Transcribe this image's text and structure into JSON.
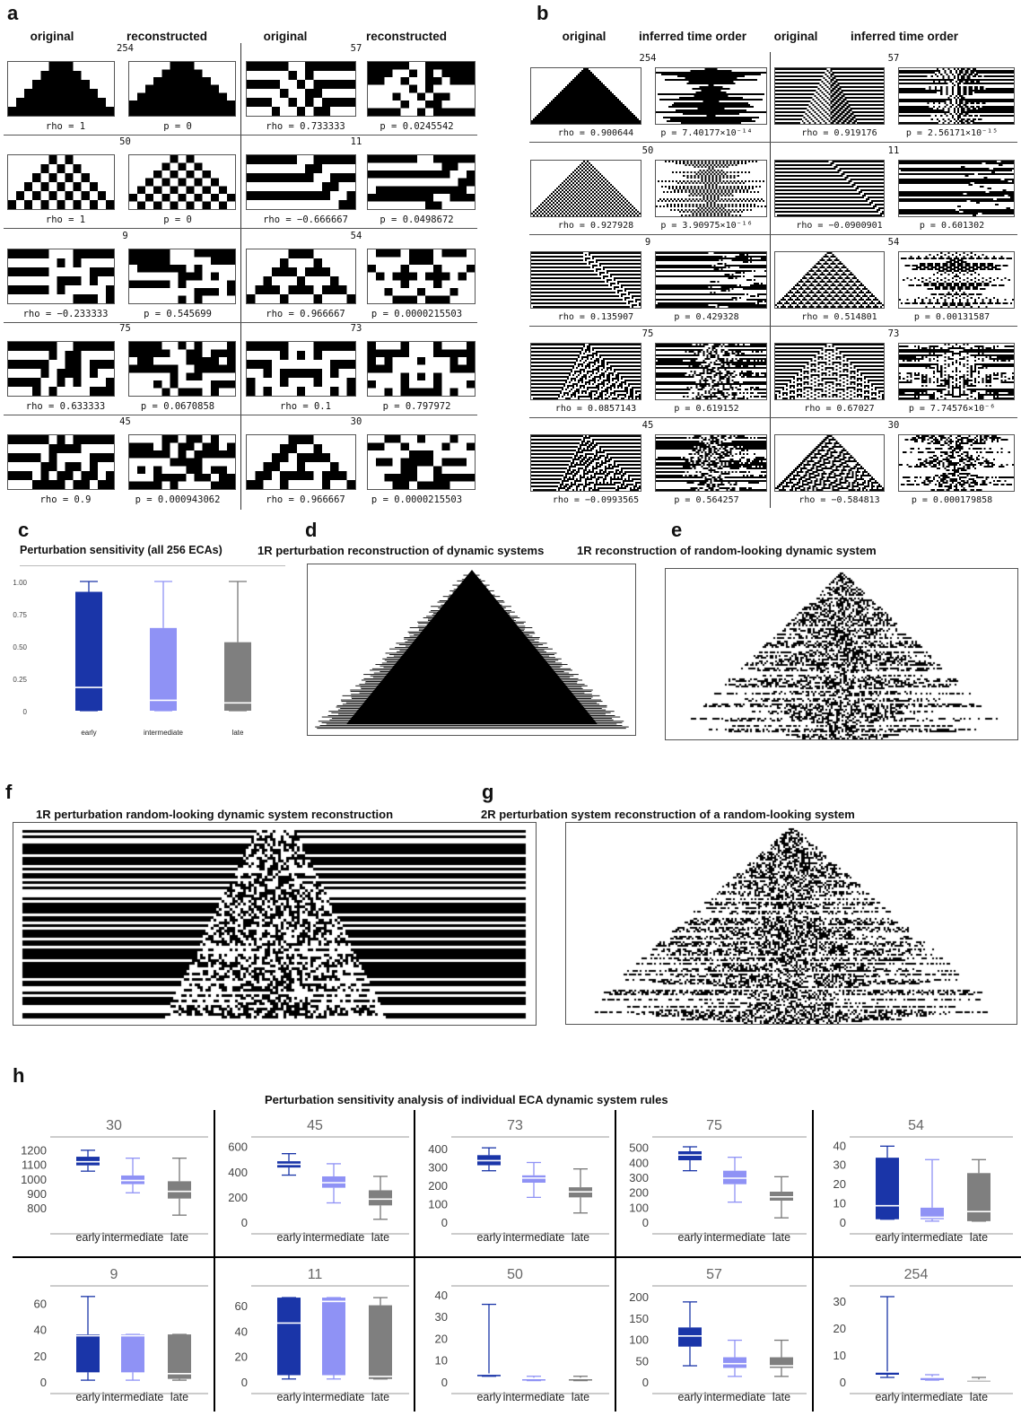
{
  "panel_a": {
    "label": "a",
    "headers": [
      "original",
      "reconstructed",
      "original",
      "reconstructed"
    ],
    "rows": [
      {
        "left": {
          "rule": "254",
          "rho": "rho = 1",
          "p": "p = 0"
        },
        "right": {
          "rule": "57",
          "rho": "rho = 0.733333",
          "p": "p = 0.0245542"
        }
      },
      {
        "left": {
          "rule": "50",
          "rho": "rho = 1",
          "p": "p = 0"
        },
        "right": {
          "rule": "11",
          "rho": "rho = −0.666667",
          "p": "p = 0.0498672"
        }
      },
      {
        "left": {
          "rule": "9",
          "rho": "rho = −0.233333",
          "p": "p = 0.545699"
        },
        "right": {
          "rule": "54",
          "rho": "rho = 0.966667",
          "p": "p = 0.0000215503"
        }
      },
      {
        "left": {
          "rule": "75",
          "rho": "rho = 0.633333",
          "p": "p = 0.0670858"
        },
        "right": {
          "rule": "73",
          "rho": "rho = 0.1",
          "p": "p = 0.797972"
        }
      },
      {
        "left": {
          "rule": "45",
          "rho": "rho = 0.9",
          "p": "p = 0.000943062"
        },
        "right": {
          "rule": "30",
          "rho": "rho = 0.966667",
          "p": "p = 0.0000215503"
        }
      }
    ]
  },
  "panel_b": {
    "label": "b",
    "headers": [
      "original",
      "inferred time order",
      "original",
      "inferred time order"
    ],
    "rows": [
      {
        "left": {
          "rule": "254",
          "rho": "rho = 0.900644",
          "p": "p = 7.40177×10⁻¹⁴"
        },
        "right": {
          "rule": "57",
          "rho": "rho = 0.919176",
          "p": "p = 2.56171×10⁻¹⁵"
        }
      },
      {
        "left": {
          "rule": "50",
          "rho": "rho = 0.927928",
          "p": "p = 3.90975×10⁻¹⁶"
        },
        "right": {
          "rule": "11",
          "rho": "rho = −0.0900901",
          "p": "p = 0.601302"
        }
      },
      {
        "left": {
          "rule": "9",
          "rho": "rho = 0.135907",
          "p": "p = 0.429328"
        },
        "right": {
          "rule": "54",
          "rho": "rho = 0.514801",
          "p": "p = 0.00131587"
        }
      },
      {
        "left": {
          "rule": "75",
          "rho": "rho = 0.0857143",
          "p": "p = 0.619152"
        },
        "right": {
          "rule": "73",
          "rho": "rho = 0.67027",
          "p": "p = 7.74576×10⁻⁶"
        }
      },
      {
        "left": {
          "rule": "45",
          "rho": "rho = −0.0993565",
          "p": "p = 0.564257"
        },
        "right": {
          "rule": "30",
          "rho": "rho = −0.584813",
          "p": "p = 0.000179858"
        }
      }
    ]
  },
  "panel_c": {
    "label": "c",
    "title": "Perturbation sensitivity (all 256 ECAs)"
  },
  "panel_d": {
    "label": "d",
    "title": "1R perturbation reconstruction of dynamic systems"
  },
  "panel_e": {
    "label": "e",
    "title": "1R reconstruction of random-looking dynamic system"
  },
  "panel_f": {
    "label": "f",
    "title": "1R perturbation random-looking dynamic system reconstruction"
  },
  "panel_g": {
    "label": "g",
    "title": "2R perturbation system reconstruction of a random-looking system"
  },
  "panel_h": {
    "label": "h",
    "title": "Perturbation sensitivity analysis of individual ECA dynamic system rules"
  },
  "colors": {
    "early": "#1a35a8",
    "intermediate": "#8f92f5",
    "late": "#7f7f7f"
  },
  "chart_data": [
    {
      "type": "box",
      "panel": "c",
      "title": "Perturbation sensitivity (all 256 ECAs)",
      "categories": [
        "early",
        "intermediate",
        "late"
      ],
      "yticks": [
        "0",
        "0.25",
        "0.50",
        "0.75",
        "1.00"
      ],
      "ylim": [
        0,
        1
      ],
      "boxes": [
        {
          "min": 0,
          "q1": 0,
          "median": 0.18,
          "q3": 0.92,
          "max": 1.0
        },
        {
          "min": 0,
          "q1": 0,
          "median": 0.08,
          "q3": 0.64,
          "max": 1.0
        },
        {
          "min": 0,
          "q1": 0,
          "median": 0.06,
          "q3": 0.53,
          "max": 1.0
        }
      ]
    },
    {
      "type": "box",
      "panel": "h",
      "title": "30",
      "categories": [
        "early",
        "intermediate",
        "late"
      ],
      "yticks": [
        "800",
        "900",
        "1000",
        "1100",
        "1200"
      ],
      "ylim": [
        700,
        1260
      ],
      "boxes": [
        {
          "min": 1060,
          "q1": 1100,
          "median": 1125,
          "q3": 1160,
          "max": 1205
        },
        {
          "min": 910,
          "q1": 970,
          "median": 995,
          "q3": 1030,
          "max": 1150
        },
        {
          "min": 755,
          "q1": 870,
          "median": 920,
          "q3": 990,
          "max": 1150
        }
      ]
    },
    {
      "type": "box",
      "panel": "h",
      "title": "45",
      "categories": [
        "early",
        "intermediate",
        "late"
      ],
      "yticks": [
        "0",
        "200",
        "400",
        "600"
      ],
      "ylim": [
        0,
        640
      ],
      "boxes": [
        {
          "min": 380,
          "q1": 440,
          "median": 465,
          "q3": 490,
          "max": 550
        },
        {
          "min": 160,
          "q1": 280,
          "median": 320,
          "q3": 370,
          "max": 470
        },
        {
          "min": 30,
          "q1": 140,
          "median": 190,
          "q3": 260,
          "max": 370
        }
      ]
    },
    {
      "type": "box",
      "panel": "h",
      "title": "73",
      "categories": [
        "early",
        "intermediate",
        "late"
      ],
      "yticks": [
        "0",
        "100",
        "200",
        "300",
        "400"
      ],
      "ylim": [
        0,
        440
      ],
      "boxes": [
        {
          "min": 285,
          "q1": 315,
          "median": 340,
          "q3": 370,
          "max": 410
        },
        {
          "min": 140,
          "q1": 220,
          "median": 245,
          "q3": 260,
          "max": 330
        },
        {
          "min": 55,
          "q1": 140,
          "median": 170,
          "q3": 195,
          "max": 295
        }
      ]
    },
    {
      "type": "box",
      "panel": "h",
      "title": "75",
      "categories": [
        "early",
        "intermediate",
        "late"
      ],
      "yticks": [
        "0",
        "100",
        "200",
        "300",
        "400",
        "500"
      ],
      "ylim": [
        0,
        540
      ],
      "boxes": [
        {
          "min": 350,
          "q1": 420,
          "median": 455,
          "q3": 480,
          "max": 510
        },
        {
          "min": 140,
          "q1": 260,
          "median": 300,
          "q3": 350,
          "max": 440
        },
        {
          "min": 35,
          "q1": 150,
          "median": 175,
          "q3": 210,
          "max": 310
        }
      ]
    },
    {
      "type": "box",
      "panel": "h",
      "title": "54",
      "categories": [
        "early",
        "intermediate",
        "late"
      ],
      "yticks": [
        "0",
        "10",
        "20",
        "30",
        "40"
      ],
      "ylim": [
        0,
        42
      ],
      "boxes": [
        {
          "min": 2,
          "q1": 2,
          "median": 9,
          "q3": 34,
          "max": 40
        },
        {
          "min": 1,
          "q1": 2,
          "median": 3,
          "q3": 8,
          "max": 33
        },
        {
          "min": 1,
          "q1": 1,
          "median": 6,
          "q3": 26,
          "max": 33
        }
      ]
    },
    {
      "type": "box",
      "panel": "h",
      "title": "9",
      "categories": [
        "early",
        "intermediate",
        "late"
      ],
      "yticks": [
        "0",
        "20",
        "40",
        "60"
      ],
      "ylim": [
        0,
        70
      ],
      "boxes": [
        {
          "min": 2,
          "q1": 8,
          "median": 36,
          "q3": 37,
          "max": 66
        },
        {
          "min": 2,
          "q1": 8,
          "median": 36,
          "q3": 37,
          "max": 37
        },
        {
          "min": 2,
          "q1": 3,
          "median": 7,
          "q3": 37,
          "max": 37
        }
      ]
    },
    {
      "type": "box",
      "panel": "h",
      "title": "11",
      "categories": [
        "early",
        "intermediate",
        "late"
      ],
      "yticks": [
        "0",
        "20",
        "40",
        "60"
      ],
      "ylim": [
        0,
        72
      ],
      "boxes": [
        {
          "min": 3,
          "q1": 6,
          "median": 47,
          "q3": 67,
          "max": 67
        },
        {
          "min": 3,
          "q1": 6,
          "median": 64,
          "q3": 67,
          "max": 67
        },
        {
          "min": 3,
          "q1": 3,
          "median": 5,
          "q3": 61,
          "max": 67
        }
      ]
    },
    {
      "type": "box",
      "panel": "h",
      "title": "50",
      "categories": [
        "early",
        "intermediate",
        "late"
      ],
      "yticks": [
        "0",
        "10",
        "20",
        "30",
        "40"
      ],
      "ylim": [
        0,
        42
      ],
      "boxes": [
        {
          "min": 3,
          "q1": 3,
          "median": 4,
          "q3": 4,
          "max": 36
        },
        {
          "min": 1,
          "q1": 1,
          "median": 2,
          "q3": 2,
          "max": 3
        },
        {
          "min": 1,
          "q1": 1,
          "median": 2,
          "q3": 2,
          "max": 3
        }
      ]
    },
    {
      "type": "box",
      "panel": "h",
      "title": "57",
      "categories": [
        "early",
        "intermediate",
        "late"
      ],
      "yticks": [
        "0",
        "50",
        "100",
        "150",
        "200"
      ],
      "ylim": [
        0,
        215
      ],
      "boxes": [
        {
          "min": 40,
          "q1": 85,
          "median": 110,
          "q3": 130,
          "max": 190
        },
        {
          "min": 15,
          "q1": 35,
          "median": 45,
          "q3": 60,
          "max": 100
        },
        {
          "min": 15,
          "q1": 35,
          "median": 40,
          "q3": 60,
          "max": 100
        }
      ]
    },
    {
      "type": "box",
      "panel": "h",
      "title": "254",
      "categories": [
        "early",
        "intermediate",
        "late"
      ],
      "yticks": [
        "0",
        "10",
        "20",
        "30"
      ],
      "ylim": [
        0,
        34
      ],
      "boxes": [
        {
          "min": 2,
          "q1": 3,
          "median": 4,
          "q3": 4,
          "max": 32
        },
        {
          "min": 1,
          "q1": 1,
          "median": 2,
          "q3": 2,
          "max": 3
        },
        {
          "min": 1,
          "q1": 1,
          "median": 1,
          "q3": 1,
          "max": 2
        }
      ]
    }
  ]
}
